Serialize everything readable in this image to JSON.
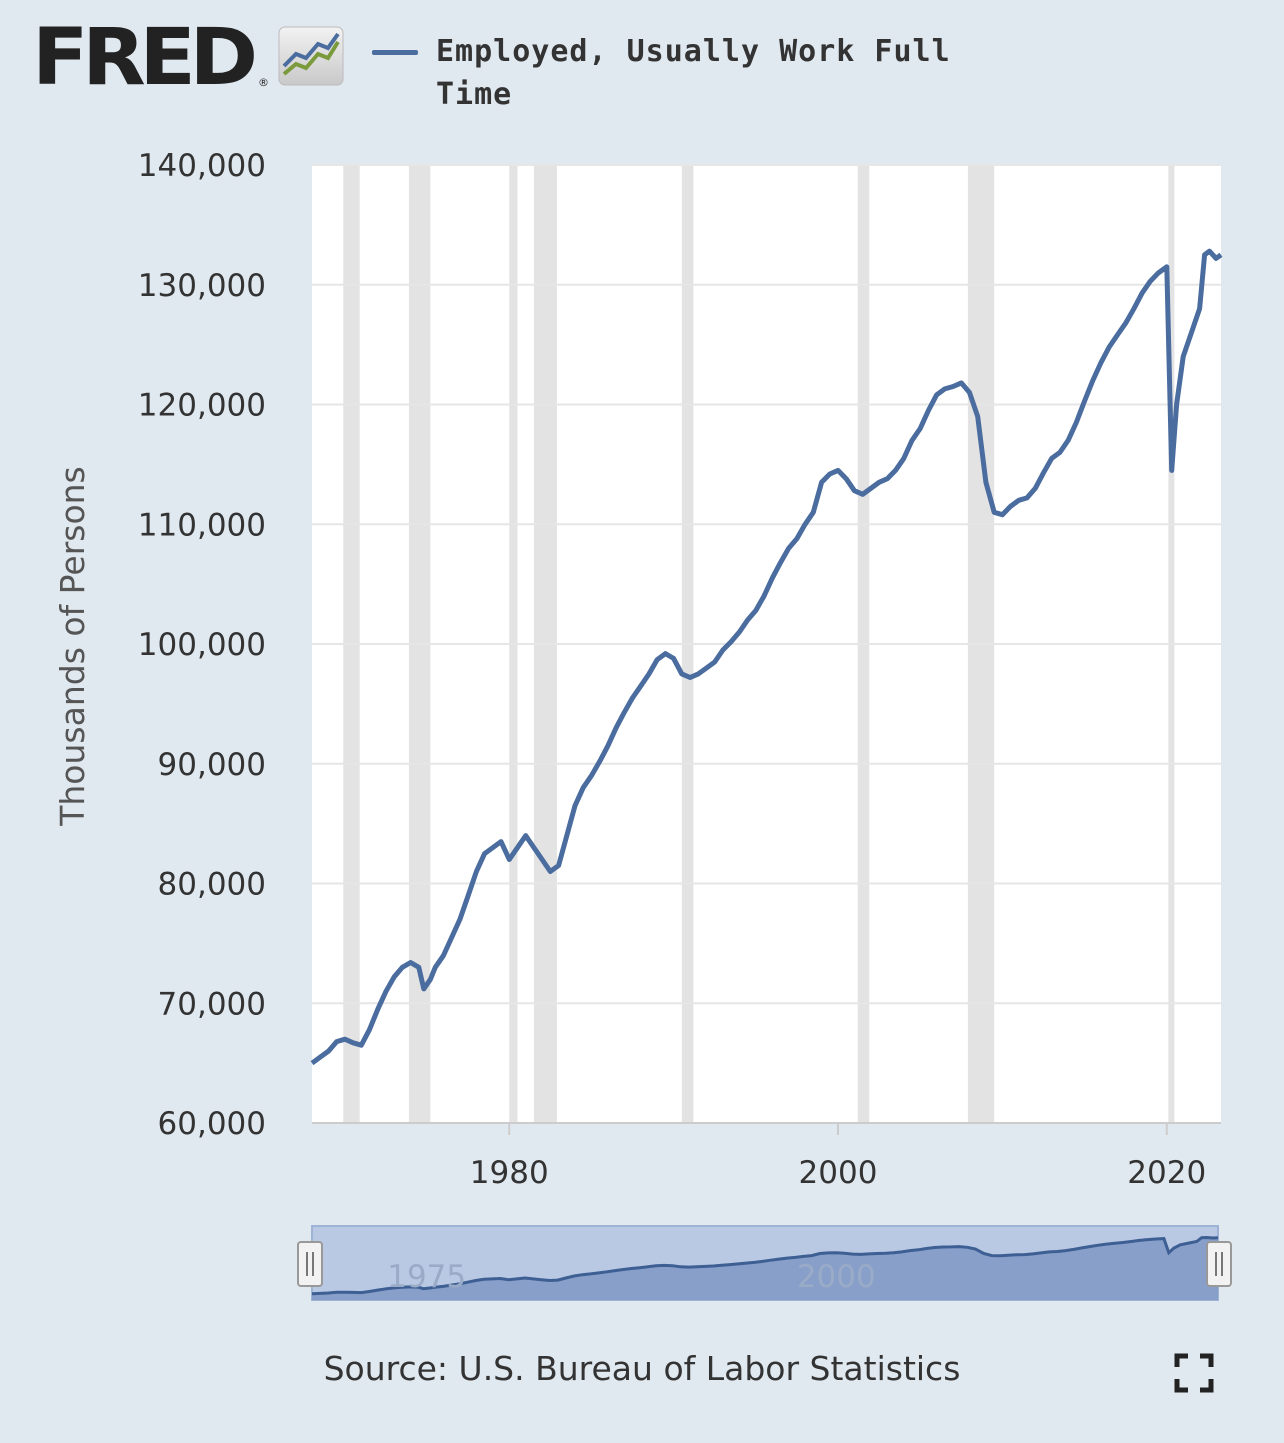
{
  "logo": {
    "text": "FRED",
    "registered": "®",
    "icon": "line-chart-icon"
  },
  "legend": {
    "label": "Employed, Usually Work Full Time",
    "color": "#4a6c9e"
  },
  "source": "Source: U.S. Bureau of Labor Statistics",
  "fullscreen_icon": "fullscreen-icon",
  "colors": {
    "background": "#e1e9f0",
    "plot": "#ffffff",
    "line": "#4a6c9e",
    "recession": "#e3e3e3",
    "navigator": "#b9c9e3"
  },
  "chart_data": {
    "type": "line",
    "ylabel": "Thousands of Persons",
    "xlabel": "",
    "ylim": [
      60000,
      140000
    ],
    "xlim": [
      1968.0,
      2023.3
    ],
    "yticks": [
      60000,
      70000,
      80000,
      90000,
      100000,
      110000,
      120000,
      130000,
      140000
    ],
    "ytick_labels": [
      "60,000",
      "70,000",
      "80,000",
      "90,000",
      "100,000",
      "110,000",
      "120,000",
      "130,000",
      "140,000"
    ],
    "xticks": [
      1980,
      2000,
      2020
    ],
    "xtick_labels": [
      "1980",
      "2000",
      "2020"
    ],
    "grid": true,
    "recessions": [
      [
        1969.9,
        1970.9
      ],
      [
        1973.9,
        1975.2
      ],
      [
        1980.0,
        1980.5
      ],
      [
        1981.5,
        1982.9
      ],
      [
        1990.5,
        1991.2
      ],
      [
        2001.2,
        2001.9
      ],
      [
        2007.9,
        2009.5
      ],
      [
        2020.1,
        2020.4
      ]
    ],
    "series": [
      {
        "name": "Employed, Usually Work Full Time",
        "x": [
          1968.0,
          1968.5,
          1969.0,
          1969.5,
          1970.0,
          1970.5,
          1971.0,
          1971.5,
          1972.0,
          1972.5,
          1973.0,
          1973.5,
          1974.0,
          1974.5,
          1974.8,
          1975.2,
          1975.5,
          1976.0,
          1976.5,
          1977.0,
          1977.5,
          1978.0,
          1978.5,
          1979.0,
          1979.5,
          1980.0,
          1980.5,
          1981.0,
          1981.5,
          1982.0,
          1982.5,
          1983.0,
          1983.5,
          1984.0,
          1984.5,
          1985.0,
          1985.5,
          1986.0,
          1986.5,
          1987.0,
          1987.5,
          1988.0,
          1988.5,
          1989.0,
          1989.5,
          1990.0,
          1990.5,
          1991.0,
          1991.5,
          1992.0,
          1992.5,
          1993.0,
          1993.5,
          1994.0,
          1994.5,
          1995.0,
          1995.5,
          1996.0,
          1996.5,
          1997.0,
          1997.5,
          1998.0,
          1998.5,
          1999.0,
          1999.5,
          2000.0,
          2000.5,
          2001.0,
          2001.5,
          2002.0,
          2002.5,
          2003.0,
          2003.5,
          2004.0,
          2004.5,
          2005.0,
          2005.5,
          2006.0,
          2006.5,
          2007.0,
          2007.5,
          2008.0,
          2008.5,
          2009.0,
          2009.5,
          2010.0,
          2010.5,
          2011.0,
          2011.5,
          2012.0,
          2012.5,
          2013.0,
          2013.5,
          2014.0,
          2014.5,
          2015.0,
          2015.5,
          2016.0,
          2016.5,
          2017.0,
          2017.5,
          2018.0,
          2018.5,
          2019.0,
          2019.5,
          2020.0,
          2020.3,
          2020.6,
          2021.0,
          2021.5,
          2022.0,
          2022.3,
          2022.6,
          2023.0,
          2023.3
        ],
        "values": [
          65000,
          65500,
          66000,
          66800,
          67000,
          66700,
          66500,
          67800,
          69500,
          71000,
          72200,
          73000,
          73400,
          73000,
          71200,
          72000,
          73000,
          74000,
          75500,
          77000,
          79000,
          81000,
          82500,
          83000,
          83500,
          82000,
          83000,
          84000,
          83000,
          82000,
          81000,
          81500,
          84000,
          86500,
          88000,
          89000,
          90200,
          91500,
          93000,
          94300,
          95500,
          96500,
          97500,
          98700,
          99200,
          98800,
          97500,
          97200,
          97500,
          98000,
          98500,
          99500,
          100200,
          101000,
          102000,
          102800,
          104000,
          105500,
          106800,
          108000,
          108800,
          110000,
          111000,
          113500,
          114200,
          114500,
          113800,
          112800,
          112500,
          113000,
          113500,
          113800,
          114500,
          115500,
          117000,
          118000,
          119500,
          120800,
          121300,
          121500,
          121800,
          121000,
          119000,
          113500,
          111000,
          110800,
          111500,
          112000,
          112200,
          113000,
          114300,
          115500,
          116000,
          117000,
          118500,
          120300,
          122000,
          123500,
          124800,
          125800,
          126800,
          128000,
          129300,
          130300,
          131000,
          131500,
          114500,
          120000,
          124000,
          126000,
          128000,
          132500,
          132800,
          132200,
          132500
        ]
      }
    ],
    "navigator": {
      "xticks": [
        1975,
        2000
      ],
      "xtick_labels": [
        "1975",
        "2000"
      ]
    }
  }
}
